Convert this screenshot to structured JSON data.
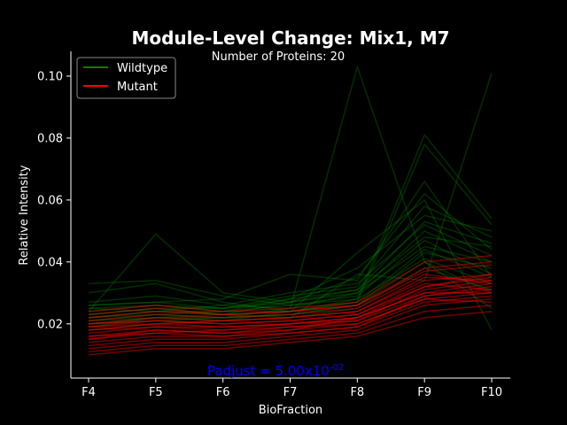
{
  "chart_data": {
    "type": "line",
    "title": "Module-Level Change: Mix1, M7",
    "subtitle": "Number of Proteins: 20",
    "xlabel": "BioFraction",
    "ylabel": "Relative Intensity",
    "categories": [
      "F4",
      "F5",
      "F6",
      "F7",
      "F8",
      "F9",
      "F10"
    ],
    "ylim": [
      0.0025,
      0.108
    ],
    "yticks": [
      "0.02",
      "0.04",
      "0.06",
      "0.08",
      "0.10"
    ],
    "grid": false,
    "legend": {
      "placement": "top-left",
      "entries": [
        "Wildtype",
        "Mutant"
      ]
    },
    "colors": {
      "Wildtype": "#008000",
      "Mutant": "#ff0000",
      "annotation": "#0000ff",
      "background": "#000000"
    },
    "annotation": {
      "text": "Padjust = 5.00x10",
      "exponent": "-02"
    },
    "series": [
      {
        "group": "Wildtype",
        "values": [
          0.033,
          0.034,
          0.029,
          0.026,
          0.028,
          0.081,
          0.054
        ]
      },
      {
        "group": "Wildtype",
        "values": [
          0.03,
          0.033,
          0.027,
          0.024,
          0.027,
          0.078,
          0.052
        ]
      },
      {
        "group": "Wildtype",
        "values": [
          0.024,
          0.049,
          0.03,
          0.027,
          0.03,
          0.045,
          0.04
        ]
      },
      {
        "group": "Wildtype",
        "values": [
          0.021,
          0.023,
          0.022,
          0.025,
          0.103,
          0.04,
          0.03
        ]
      },
      {
        "group": "Wildtype",
        "values": [
          0.022,
          0.024,
          0.023,
          0.022,
          0.036,
          0.034,
          0.101
        ]
      },
      {
        "group": "Wildtype",
        "values": [
          0.026,
          0.027,
          0.028,
          0.036,
          0.034,
          0.066,
          0.035
        ]
      },
      {
        "group": "Wildtype",
        "values": [
          0.019,
          0.022,
          0.023,
          0.024,
          0.043,
          0.06,
          0.018
        ]
      },
      {
        "group": "Wildtype",
        "values": [
          0.025,
          0.026,
          0.024,
          0.028,
          0.038,
          0.055,
          0.05
        ]
      },
      {
        "group": "Wildtype",
        "values": [
          0.023,
          0.025,
          0.025,
          0.027,
          0.031,
          0.048,
          0.045
        ]
      },
      {
        "group": "Wildtype",
        "values": [
          0.027,
          0.029,
          0.026,
          0.03,
          0.033,
          0.052,
          0.042
        ]
      },
      {
        "group": "Wildtype",
        "values": [
          0.02,
          0.021,
          0.022,
          0.023,
          0.026,
          0.043,
          0.038
        ]
      },
      {
        "group": "Wildtype",
        "values": [
          0.022,
          0.024,
          0.024,
          0.026,
          0.029,
          0.047,
          0.036
        ]
      },
      {
        "group": "Wildtype",
        "values": [
          0.024,
          0.026,
          0.025,
          0.029,
          0.032,
          0.058,
          0.048
        ]
      },
      {
        "group": "Wildtype",
        "values": [
          0.021,
          0.022,
          0.021,
          0.024,
          0.028,
          0.041,
          0.033
        ]
      },
      {
        "group": "Wildtype",
        "values": [
          0.025,
          0.024,
          0.026,
          0.025,
          0.03,
          0.05,
          0.04
        ]
      },
      {
        "group": "Wildtype",
        "values": [
          0.018,
          0.02,
          0.021,
          0.022,
          0.025,
          0.038,
          0.031
        ]
      },
      {
        "group": "Wildtype",
        "values": [
          0.023,
          0.025,
          0.023,
          0.027,
          0.035,
          0.062,
          0.044
        ]
      },
      {
        "group": "Wildtype",
        "values": [
          0.022,
          0.023,
          0.024,
          0.024,
          0.027,
          0.044,
          0.035
        ]
      },
      {
        "group": "Wildtype",
        "values": [
          0.026,
          0.027,
          0.025,
          0.028,
          0.031,
          0.053,
          0.046
        ]
      },
      {
        "group": "Wildtype",
        "values": [
          0.02,
          0.022,
          0.022,
          0.023,
          0.026,
          0.04,
          0.025
        ]
      },
      {
        "group": "Mutant",
        "values": [
          0.018,
          0.02,
          0.019,
          0.02,
          0.022,
          0.03,
          0.033
        ]
      },
      {
        "group": "Mutant",
        "values": [
          0.015,
          0.017,
          0.016,
          0.018,
          0.02,
          0.028,
          0.03
        ]
      },
      {
        "group": "Mutant",
        "values": [
          0.012,
          0.014,
          0.014,
          0.016,
          0.018,
          0.026,
          0.028
        ]
      },
      {
        "group": "Mutant",
        "values": [
          0.02,
          0.022,
          0.021,
          0.022,
          0.024,
          0.034,
          0.036
        ]
      },
      {
        "group": "Mutant",
        "values": [
          0.022,
          0.024,
          0.023,
          0.024,
          0.026,
          0.038,
          0.04
        ]
      },
      {
        "group": "Mutant",
        "values": [
          0.01,
          0.012,
          0.012,
          0.014,
          0.016,
          0.022,
          0.024
        ]
      },
      {
        "group": "Mutant",
        "values": [
          0.016,
          0.018,
          0.017,
          0.019,
          0.021,
          0.031,
          0.034
        ]
      },
      {
        "group": "Mutant",
        "values": [
          0.019,
          0.021,
          0.02,
          0.021,
          0.023,
          0.033,
          0.031
        ]
      },
      {
        "group": "Mutant",
        "values": [
          0.024,
          0.026,
          0.024,
          0.025,
          0.027,
          0.04,
          0.042
        ]
      },
      {
        "group": "Mutant",
        "values": [
          0.013,
          0.015,
          0.015,
          0.017,
          0.019,
          0.027,
          0.029
        ]
      },
      {
        "group": "Mutant",
        "values": [
          0.017,
          0.019,
          0.018,
          0.02,
          0.022,
          0.032,
          0.035
        ]
      },
      {
        "group": "Mutant",
        "values": [
          0.021,
          0.023,
          0.022,
          0.023,
          0.025,
          0.036,
          0.033
        ]
      },
      {
        "group": "Mutant",
        "values": [
          0.014,
          0.016,
          0.016,
          0.017,
          0.019,
          0.029,
          0.031
        ]
      },
      {
        "group": "Mutant",
        "values": [
          0.023,
          0.025,
          0.023,
          0.024,
          0.026,
          0.037,
          0.039
        ]
      },
      {
        "group": "Mutant",
        "values": [
          0.011,
          0.013,
          0.013,
          0.015,
          0.017,
          0.024,
          0.026
        ]
      },
      {
        "group": "Mutant",
        "values": [
          0.018,
          0.019,
          0.019,
          0.02,
          0.021,
          0.029,
          0.032
        ]
      },
      {
        "group": "Mutant",
        "values": [
          0.016,
          0.017,
          0.018,
          0.019,
          0.02,
          0.028,
          0.027
        ]
      },
      {
        "group": "Mutant",
        "values": [
          0.02,
          0.021,
          0.02,
          0.021,
          0.023,
          0.032,
          0.036
        ]
      },
      {
        "group": "Mutant",
        "values": [
          0.015,
          0.018,
          0.017,
          0.018,
          0.022,
          0.03,
          0.03
        ]
      },
      {
        "group": "Mutant",
        "values": [
          0.019,
          0.02,
          0.021,
          0.022,
          0.024,
          0.035,
          0.034
        ]
      }
    ]
  }
}
